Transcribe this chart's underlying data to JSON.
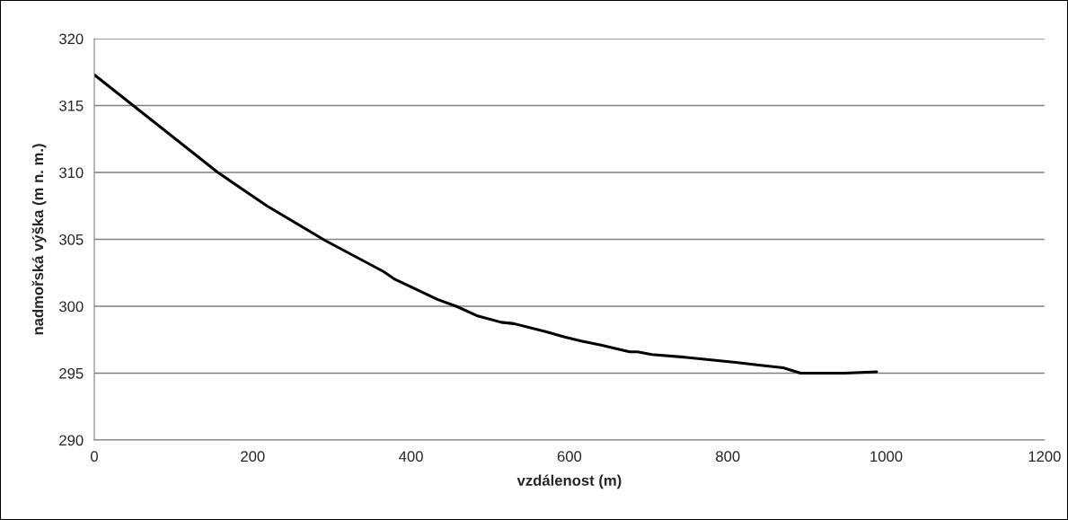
{
  "chart_data": {
    "type": "line",
    "xlabel": "vzdálenost (m)",
    "ylabel": "nadmořská výška (m n. m.)",
    "series": [
      {
        "color": "#000000",
        "x": [
          0,
          156,
          218,
          292,
          365,
          380,
          434,
          457,
          483,
          514,
          530,
          570,
          594,
          615,
          640,
          676,
          686,
          704,
          744,
          810,
          839,
          870,
          892,
          908,
          947,
          988
        ],
        "values": [
          317.3,
          310.0,
          307.5,
          304.9,
          302.6,
          302.0,
          300.5,
          300.0,
          299.3,
          298.8,
          298.7,
          298.1,
          297.7,
          297.4,
          297.1,
          296.6,
          296.6,
          296.4,
          296.2,
          295.8,
          295.6,
          295.4,
          295.0,
          295.0,
          295.0,
          295.1
        ]
      }
    ],
    "xlim": [
      0,
      1200
    ],
    "xticks": [
      0,
      200,
      400,
      600,
      800,
      1000,
      1200
    ],
    "ylim": [
      290,
      320
    ],
    "yticks": [
      290,
      295,
      300,
      305,
      310,
      315,
      320
    ],
    "grid": "y",
    "marker": "none",
    "line_style": "solid"
  }
}
